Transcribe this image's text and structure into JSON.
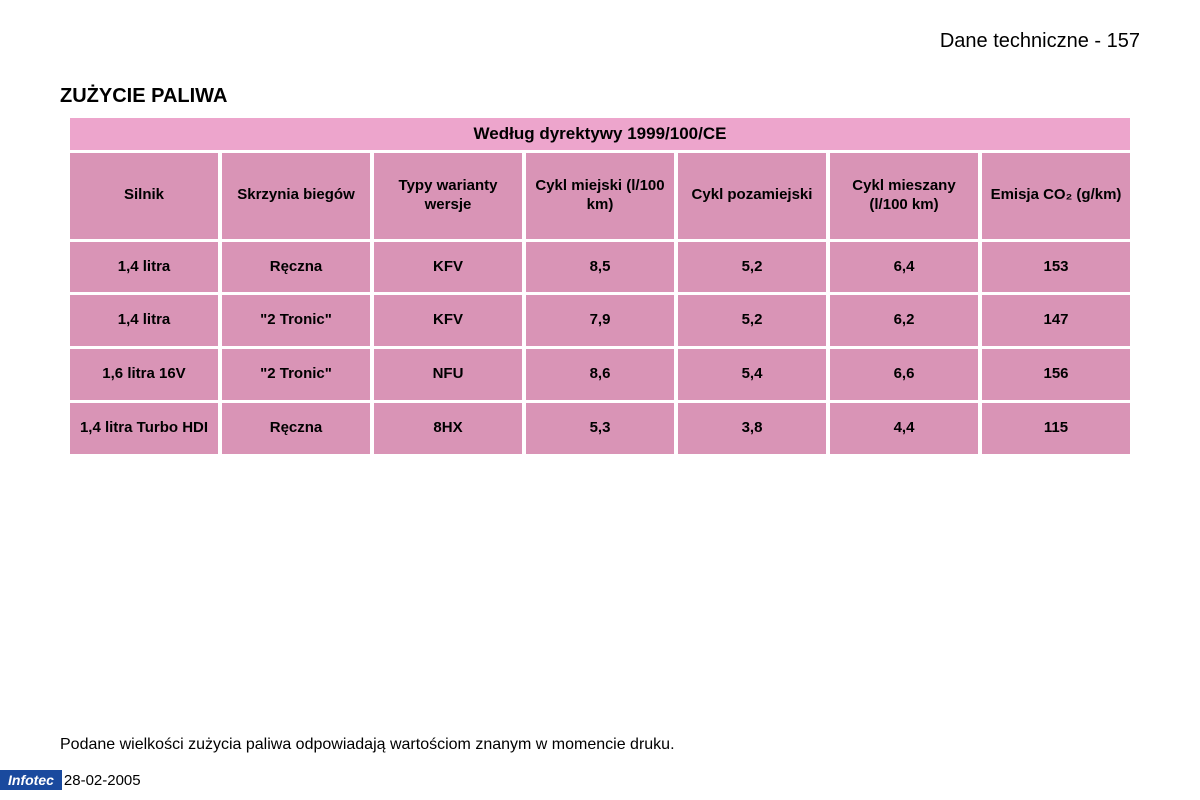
{
  "page_header": "Dane techniczne - 157",
  "section_title": "ZUŻYCIE PALIWA",
  "table": {
    "banner": "Według dyrektywy 1999/100/CE",
    "columns": [
      "Silnik",
      "Skrzynia biegów",
      "Typy warianty wersje",
      "Cykl miejski (l/100 km)",
      "Cykl pozamiejski",
      "Cykl mieszany (l/100 km)",
      "Emisja CO₂ (g/km)"
    ],
    "rows": [
      [
        "1,4 litra",
        "Ręczna",
        "KFV",
        "8,5",
        "5,2",
        "6,4",
        "153"
      ],
      [
        "1,4 litra",
        "\"2 Tronic\"",
        "KFV",
        "7,9",
        "5,2",
        "6,2",
        "147"
      ],
      [
        "1,6 litra 16V",
        "\"2 Tronic\"",
        "NFU",
        "8,6",
        "5,4",
        "6,6",
        "156"
      ],
      [
        "1,4 litra Turbo HDI",
        "Ręczna",
        "8HX",
        "5,3",
        "3,8",
        "4,4",
        "115"
      ]
    ],
    "banner_color": "#eda5cc",
    "cell_color": "#d994b6",
    "text_color": "#000000"
  },
  "footnote": "Podane wielkości zużycia paliwa odpowiadają wartościom znanym w momencie druku.",
  "footer": {
    "logo_text": "Infotec",
    "logo_bg": "#1a4a9e",
    "logo_fg": "#ffffff",
    "date": "28-02-2005"
  }
}
